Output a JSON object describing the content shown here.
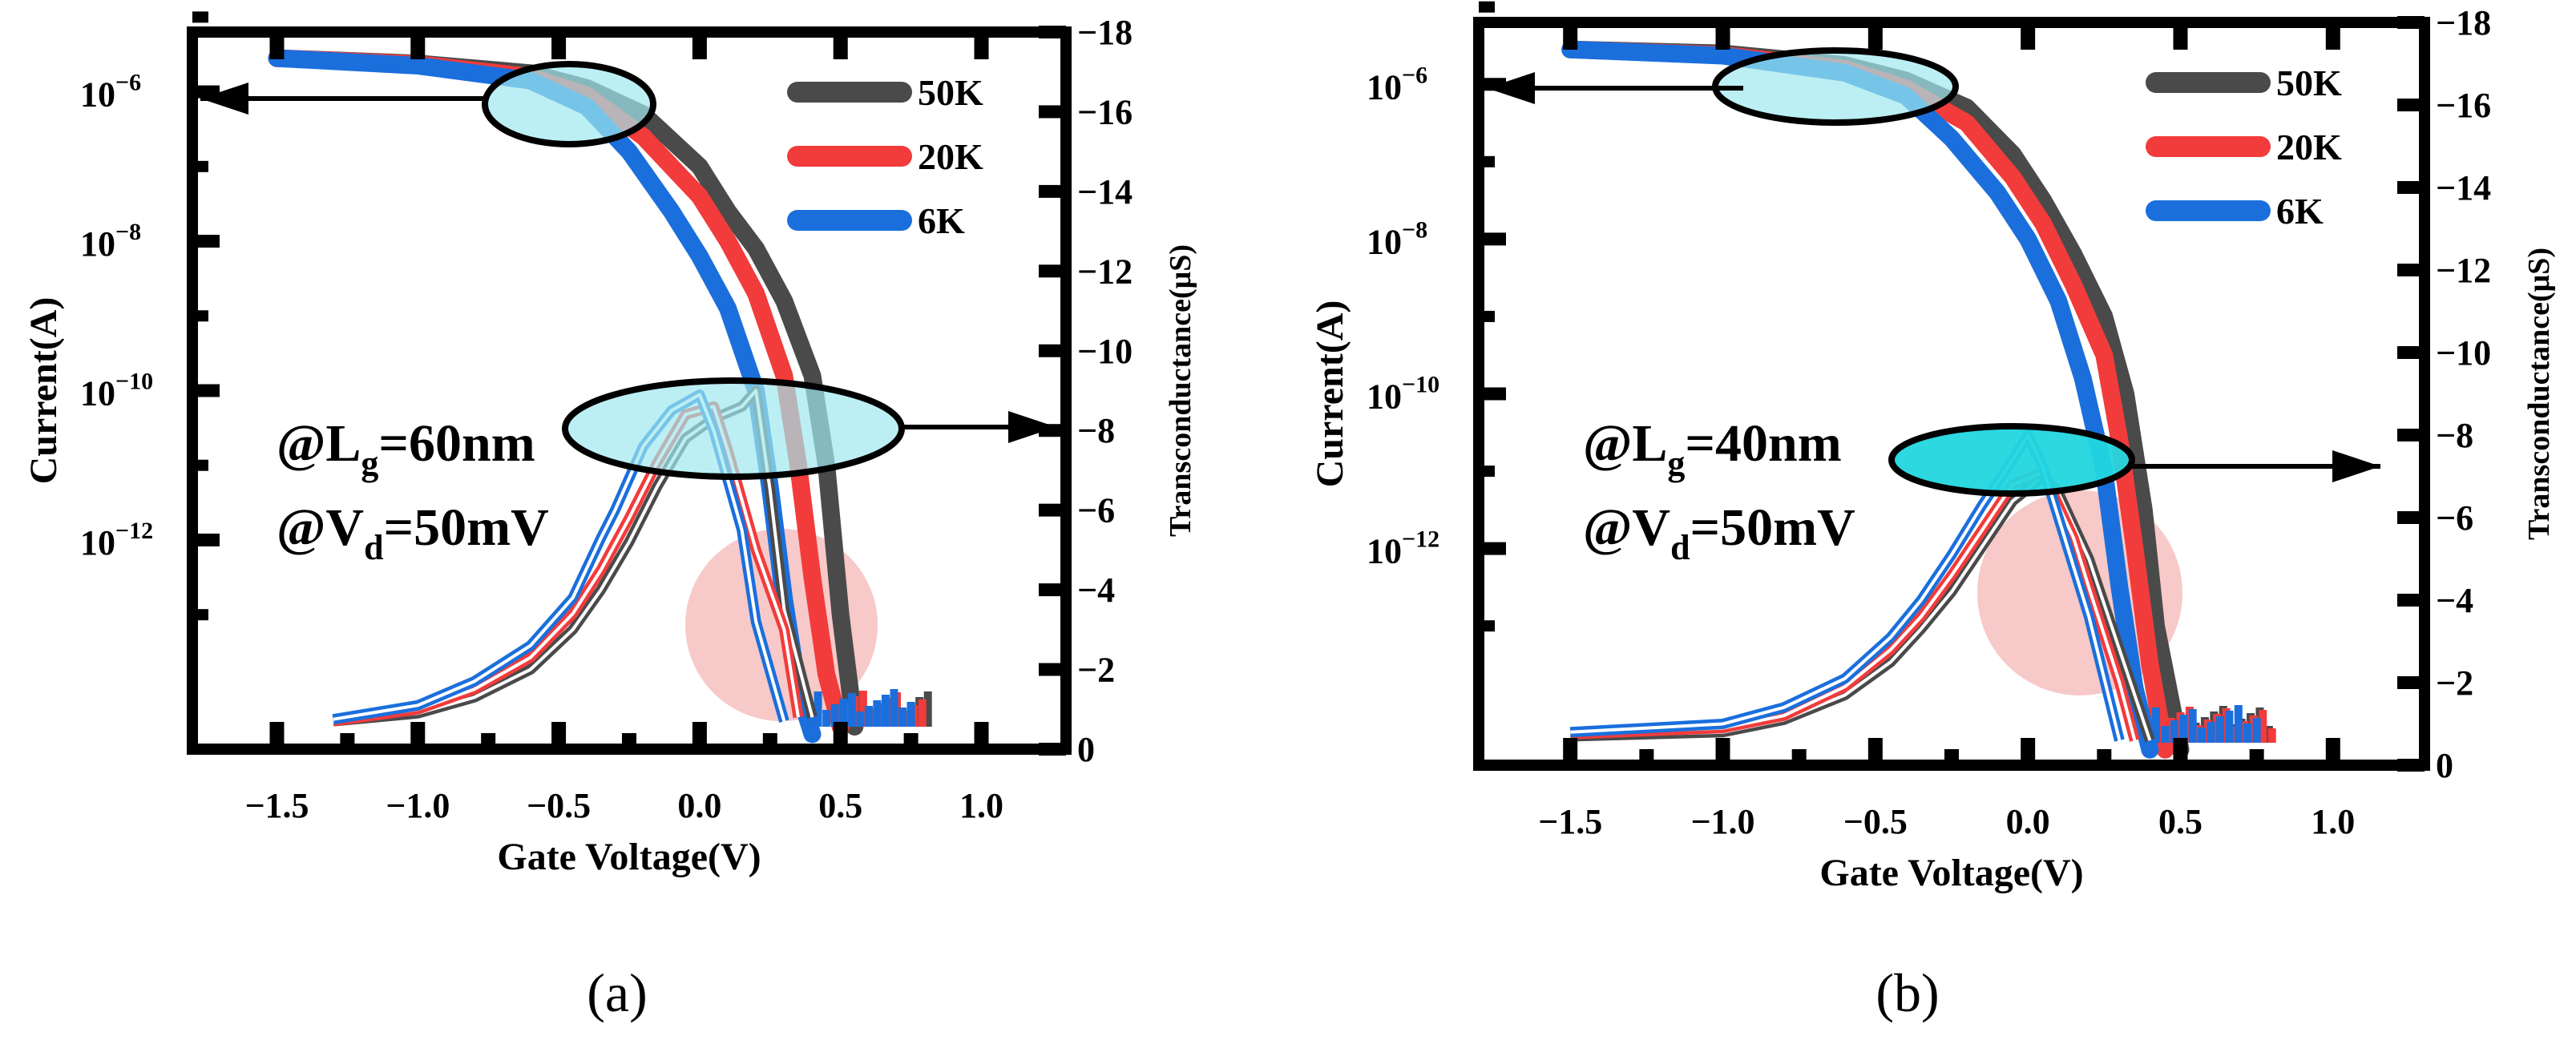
{
  "colors": {
    "s50K": "#4a4a4a",
    "s20K": "#f23b3b",
    "s6K": "#1a6fdc",
    "highlight_fill": "#9fe8ee",
    "highlight_fill_strong": "#22d6de",
    "pink_fill": "#f4b7b7"
  },
  "chart_data": [
    {
      "type": "line",
      "panel_label": "(a)",
      "condition_lg_prefix": "@L",
      "condition_lg_sub": "g",
      "condition_lg_value": "=60nm",
      "condition_vd_prefix": "@V",
      "condition_vd_sub": "d",
      "condition_vd_value": "=50mV",
      "xlabel": "Gate Voltage(V)",
      "ylabel_left": "Current(A)",
      "ylabel_right": "Transconductance(μS)",
      "xlim": [
        -1.8,
        1.3
      ],
      "x_ticks": [
        -1.5,
        -1.0,
        -0.5,
        0.0,
        0.5,
        1.0
      ],
      "x_tick_labels": [
        "−1.5",
        "−1.0",
        "−0.5",
        "0.0",
        "0.5",
        "1.0"
      ],
      "ylim_left_log10": [
        -14.8,
        -5.2
      ],
      "y_left_ticks_log10": [
        -6,
        -8,
        -10,
        -12
      ],
      "y_left_tick_labels": [
        "10",
        "10",
        "10",
        "10"
      ],
      "y_left_tick_exponents": [
        "−6",
        "−8",
        "−10",
        "−12"
      ],
      "ylim_right": [
        0,
        -18
      ],
      "y_right_ticks": [
        0,
        -2,
        -4,
        -6,
        -8,
        -10,
        -12,
        -14,
        -16,
        -18
      ],
      "y_right_tick_labels": [
        "0",
        "−2",
        "−4",
        "−6",
        "−8",
        "−10",
        "−12",
        "−14",
        "−16",
        "−18"
      ],
      "legend": [
        "50K",
        "20K",
        "6K"
      ],
      "current_series": [
        {
          "name": "50K",
          "x": [
            -1.5,
            -1.0,
            -0.6,
            -0.4,
            -0.2,
            0.0,
            0.1,
            0.2,
            0.3,
            0.4,
            0.45,
            0.5,
            0.55
          ],
          "log10_current": [
            -5.55,
            -5.62,
            -5.75,
            -5.95,
            -6.3,
            -7.0,
            -7.6,
            -8.1,
            -8.8,
            -9.8,
            -11.0,
            -13.0,
            -14.5
          ]
        },
        {
          "name": "20K",
          "x": [
            -1.5,
            -1.0,
            -0.6,
            -0.4,
            -0.2,
            0.0,
            0.1,
            0.2,
            0.3,
            0.35,
            0.4,
            0.45,
            0.5
          ],
          "log10_current": [
            -5.55,
            -5.63,
            -5.8,
            -6.05,
            -6.6,
            -7.4,
            -8.0,
            -8.7,
            -9.8,
            -11.0,
            -12.5,
            -13.8,
            -14.5
          ]
        },
        {
          "name": "6K",
          "x": [
            -1.5,
            -1.0,
            -0.6,
            -0.4,
            -0.25,
            -0.1,
            0.0,
            0.1,
            0.2,
            0.25,
            0.3,
            0.35,
            0.4
          ],
          "log10_current": [
            -5.55,
            -5.65,
            -5.85,
            -6.2,
            -6.8,
            -7.6,
            -8.2,
            -8.9,
            -10.0,
            -11.3,
            -12.8,
            -14.0,
            -14.6
          ]
        }
      ],
      "transconductance_series": [
        {
          "name": "50K",
          "x": [
            -1.3,
            -1.0,
            -0.8,
            -0.6,
            -0.45,
            -0.35,
            -0.25,
            -0.15,
            -0.05,
            0.05,
            0.15,
            0.2,
            0.25,
            0.3,
            0.4
          ],
          "gm": [
            -0.7,
            -0.9,
            -1.3,
            -2.0,
            -3.0,
            -4.0,
            -5.2,
            -6.6,
            -7.8,
            -8.3,
            -8.6,
            -9.0,
            -6.5,
            -3.5,
            -0.8
          ]
        },
        {
          "name": "20K",
          "x": [
            -1.3,
            -1.0,
            -0.8,
            -0.6,
            -0.45,
            -0.35,
            -0.25,
            -0.15,
            -0.05,
            0.05,
            0.1,
            0.2,
            0.3,
            0.35
          ],
          "gm": [
            -0.7,
            -1.0,
            -1.5,
            -2.3,
            -3.4,
            -4.5,
            -5.8,
            -7.2,
            -8.4,
            -8.6,
            -7.5,
            -5.0,
            -3.0,
            -0.8
          ]
        },
        {
          "name": "6K",
          "x": [
            -1.3,
            -1.0,
            -0.8,
            -0.6,
            -0.45,
            -0.35,
            -0.3,
            -0.2,
            -0.1,
            0.0,
            0.05,
            0.15,
            0.2,
            0.3
          ],
          "gm": [
            -0.75,
            -1.1,
            -1.7,
            -2.6,
            -3.8,
            -5.3,
            -6.0,
            -7.6,
            -8.5,
            -8.9,
            -8.0,
            -5.5,
            -3.2,
            -0.7
          ]
        }
      ]
    },
    {
      "type": "line",
      "panel_label": "(b)",
      "condition_lg_prefix": "@L",
      "condition_lg_sub": "g",
      "condition_lg_value": "=40nm",
      "condition_vd_prefix": "@V",
      "condition_vd_sub": "d",
      "condition_vd_value": "=50mV",
      "xlabel": "Gate Voltage(V)",
      "ylabel_left": "Current(A)",
      "ylabel_right": "Transconductance(μS)",
      "xlim": [
        -1.8,
        1.3
      ],
      "x_ticks": [
        -1.5,
        -1.0,
        -0.5,
        0.0,
        0.5,
        1.0
      ],
      "x_tick_labels": [
        "−1.5",
        "−1.0",
        "−0.5",
        "0.0",
        "0.5",
        "1.0"
      ],
      "ylim_left_log10": [
        -14.8,
        -5.2
      ],
      "y_left_ticks_log10": [
        -6,
        -8,
        -10,
        -12
      ],
      "y_left_tick_labels": [
        "10",
        "10",
        "10",
        "10"
      ],
      "y_left_tick_exponents": [
        "−6",
        "−8",
        "−10",
        "−12"
      ],
      "ylim_right": [
        0,
        -18
      ],
      "y_right_ticks": [
        0,
        -2,
        -4,
        -6,
        -8,
        -10,
        -12,
        -14,
        -16,
        -18
      ],
      "y_right_tick_labels": [
        "0",
        "−2",
        "−4",
        "−6",
        "−8",
        "−10",
        "−12",
        "−14",
        "−16",
        "−18"
      ],
      "legend": [
        "50K",
        "20K",
        "6K"
      ],
      "current_series": [
        {
          "name": "50K",
          "x": [
            -1.5,
            -1.0,
            -0.6,
            -0.4,
            -0.2,
            -0.05,
            0.05,
            0.15,
            0.25,
            0.32,
            0.38,
            0.42,
            0.5
          ],
          "log10_current": [
            -5.55,
            -5.6,
            -5.75,
            -5.95,
            -6.3,
            -6.9,
            -7.5,
            -8.2,
            -9.0,
            -10.0,
            -11.5,
            -13.0,
            -14.6
          ]
        },
        {
          "name": "20K",
          "x": [
            -1.5,
            -1.0,
            -0.6,
            -0.4,
            -0.2,
            -0.05,
            0.05,
            0.15,
            0.25,
            0.3,
            0.35,
            0.4,
            0.45
          ],
          "log10_current": [
            -5.55,
            -5.62,
            -5.8,
            -6.05,
            -6.5,
            -7.2,
            -7.8,
            -8.6,
            -9.5,
            -10.6,
            -12.0,
            -13.5,
            -14.6
          ]
        },
        {
          "name": "6K",
          "x": [
            -1.5,
            -1.0,
            -0.6,
            -0.4,
            -0.25,
            -0.1,
            0.0,
            0.1,
            0.18,
            0.25,
            0.3,
            0.35,
            0.4
          ],
          "log10_current": [
            -5.55,
            -5.63,
            -5.85,
            -6.15,
            -6.7,
            -7.4,
            -8.0,
            -8.8,
            -9.8,
            -11.0,
            -12.5,
            -13.8,
            -14.6
          ]
        }
      ],
      "transconductance_series": [
        {
          "name": "50K",
          "x": [
            -1.5,
            -1.0,
            -0.8,
            -0.6,
            -0.45,
            -0.35,
            -0.25,
            -0.15,
            -0.05,
            0.05,
            0.1,
            0.15,
            0.2,
            0.3,
            0.4
          ],
          "gm": [
            -0.7,
            -0.8,
            -1.1,
            -1.7,
            -2.5,
            -3.3,
            -4.2,
            -5.3,
            -6.4,
            -7.0,
            -6.6,
            -5.8,
            -5.0,
            -2.8,
            -0.6
          ]
        },
        {
          "name": "20K",
          "x": [
            -1.5,
            -1.0,
            -0.8,
            -0.6,
            -0.45,
            -0.35,
            -0.25,
            -0.15,
            -0.05,
            0.05,
            0.1,
            0.15,
            0.2,
            0.3,
            0.35
          ],
          "gm": [
            -0.75,
            -0.9,
            -1.2,
            -1.9,
            -2.8,
            -3.6,
            -4.6,
            -5.7,
            -6.8,
            -7.1,
            -6.3,
            -5.5,
            -4.3,
            -2.0,
            -0.6
          ]
        },
        {
          "name": "6K",
          "x": [
            -1.5,
            -1.0,
            -0.8,
            -0.6,
            -0.45,
            -0.35,
            -0.25,
            -0.15,
            -0.05,
            0.0,
            0.05,
            0.1,
            0.2,
            0.3
          ],
          "gm": [
            -0.8,
            -1.0,
            -1.4,
            -2.1,
            -3.1,
            -4.0,
            -5.1,
            -6.3,
            -7.4,
            -8.0,
            -7.2,
            -6.0,
            -3.6,
            -0.6
          ]
        }
      ]
    }
  ]
}
